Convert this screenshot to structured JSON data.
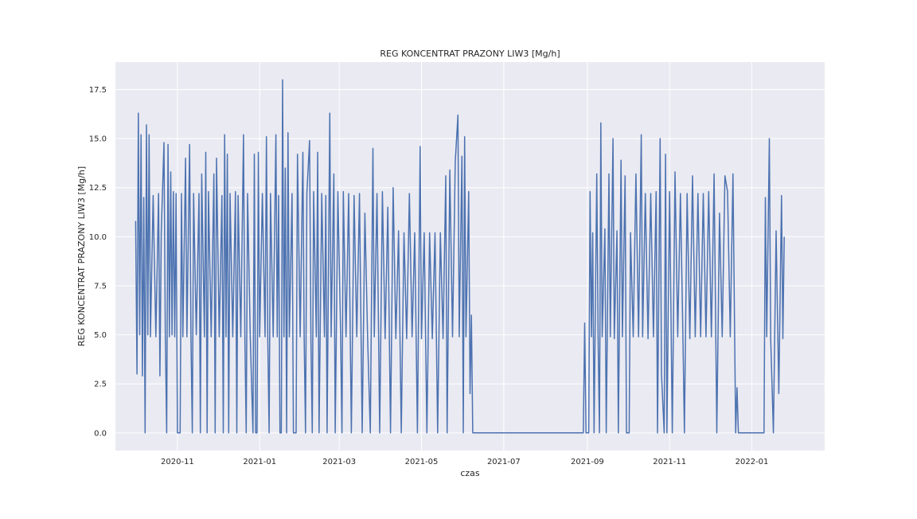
{
  "chart_data": {
    "type": "line",
    "title": "REG KONCENTRAT PRAZONY LIW3 [Mg/h]",
    "xlabel": "czas",
    "ylabel": "REG KONCENTRAT PRAZONY LIW3 [Mg/h]",
    "x_ticks": [
      "2020-11",
      "2021-01",
      "2021-03",
      "2021-05",
      "2021-07",
      "2021-09",
      "2021-11",
      "2022-01"
    ],
    "y_ticks": [
      "0.0",
      "2.5",
      "5.0",
      "7.5",
      "10.0",
      "12.5",
      "15.0",
      "17.5"
    ],
    "xlim": [
      "2020-09-16",
      "2022-02-24"
    ],
    "ylim": [
      -0.9,
      18.9
    ],
    "grid": true,
    "legend": "none",
    "series": [
      {
        "color": "#4c72b0",
        "points": [
          [
            "2020-10-01",
            10.8
          ],
          [
            "2020-10-02",
            3.0
          ],
          [
            "2020-10-03",
            16.3
          ],
          [
            "2020-10-04",
            5.0
          ],
          [
            "2020-10-05",
            15.2
          ],
          [
            "2020-10-06",
            2.9
          ],
          [
            "2020-10-07",
            12.0
          ],
          [
            "2020-10-08",
            0.0
          ],
          [
            "2020-10-09",
            15.7
          ],
          [
            "2020-10-10",
            5.0
          ],
          [
            "2020-10-11",
            15.2
          ],
          [
            "2020-10-12",
            4.9
          ],
          [
            "2020-10-14",
            12.1
          ],
          [
            "2020-10-16",
            4.9
          ],
          [
            "2020-10-18",
            12.2
          ],
          [
            "2020-10-19",
            2.9
          ],
          [
            "2020-10-20",
            10.2
          ],
          [
            "2020-10-22",
            14.8
          ],
          [
            "2020-10-23",
            4.9
          ],
          [
            "2020-10-24",
            0.0
          ],
          [
            "2020-10-25",
            14.7
          ],
          [
            "2020-10-26",
            4.9
          ],
          [
            "2020-10-27",
            13.3
          ],
          [
            "2020-10-28",
            5.0
          ],
          [
            "2020-10-29",
            12.3
          ],
          [
            "2020-10-30",
            4.9
          ],
          [
            "2020-10-31",
            12.2
          ],
          [
            "2020-11-01",
            0.0
          ],
          [
            "2020-11-03",
            0.0
          ],
          [
            "2020-11-04",
            12.2
          ],
          [
            "2020-11-05",
            4.9
          ],
          [
            "2020-11-07",
            14.0
          ],
          [
            "2020-11-08",
            4.9
          ],
          [
            "2020-11-10",
            14.7
          ],
          [
            "2020-11-11",
            4.9
          ],
          [
            "2020-11-12",
            0.0
          ],
          [
            "2020-11-13",
            12.2
          ],
          [
            "2020-11-15",
            5.0
          ],
          [
            "2020-11-17",
            12.2
          ],
          [
            "2020-11-18",
            0.0
          ],
          [
            "2020-11-19",
            13.2
          ],
          [
            "2020-11-21",
            4.9
          ],
          [
            "2020-11-22",
            14.3
          ],
          [
            "2020-11-23",
            0.0
          ],
          [
            "2020-11-24",
            12.3
          ],
          [
            "2020-11-26",
            4.9
          ],
          [
            "2020-11-28",
            13.2
          ],
          [
            "2020-11-29",
            0.0
          ],
          [
            "2020-11-30",
            14.0
          ],
          [
            "2020-12-02",
            4.9
          ],
          [
            "2020-12-04",
            12.1
          ],
          [
            "2020-12-05",
            0.0
          ],
          [
            "2020-12-06",
            15.2
          ],
          [
            "2020-12-07",
            4.9
          ],
          [
            "2020-12-08",
            14.2
          ],
          [
            "2020-12-09",
            0.0
          ],
          [
            "2020-12-10",
            12.2
          ],
          [
            "2020-12-12",
            4.9
          ],
          [
            "2020-12-14",
            12.3
          ],
          [
            "2020-12-15",
            0.0
          ],
          [
            "2020-12-16",
            12.1
          ],
          [
            "2020-12-18",
            4.9
          ],
          [
            "2020-12-20",
            15.2
          ],
          [
            "2020-12-21",
            4.9
          ],
          [
            "2020-12-22",
            0.0
          ],
          [
            "2020-12-23",
            12.2
          ],
          [
            "2020-12-25",
            4.9
          ],
          [
            "2020-12-27",
            0.0
          ],
          [
            "2020-12-28",
            14.2
          ],
          [
            "2020-12-29",
            0.0
          ],
          [
            "2020-12-30",
            0.0
          ],
          [
            "2020-12-31",
            14.3
          ],
          [
            "2021-01-01",
            4.9
          ],
          [
            "2021-01-03",
            12.2
          ],
          [
            "2021-01-05",
            4.9
          ],
          [
            "2021-01-06",
            15.1
          ],
          [
            "2021-01-07",
            4.8
          ],
          [
            "2021-01-08",
            0.0
          ],
          [
            "2021-01-09",
            12.2
          ],
          [
            "2021-01-11",
            4.9
          ],
          [
            "2021-01-13",
            15.2
          ],
          [
            "2021-01-14",
            4.9
          ],
          [
            "2021-01-15",
            12.1
          ],
          [
            "2021-01-16",
            0.0
          ],
          [
            "2021-01-17",
            0.0
          ],
          [
            "2021-01-18",
            18.0
          ],
          [
            "2021-01-19",
            4.9
          ],
          [
            "2021-01-20",
            13.5
          ],
          [
            "2021-01-21",
            0.0
          ],
          [
            "2021-01-22",
            15.3
          ],
          [
            "2021-01-23",
            4.9
          ],
          [
            "2021-01-25",
            12.2
          ],
          [
            "2021-01-26",
            0.0
          ],
          [
            "2021-01-28",
            0.0
          ],
          [
            "2021-01-29",
            14.2
          ],
          [
            "2021-01-31",
            4.9
          ],
          [
            "2021-02-02",
            14.3
          ],
          [
            "2021-02-03",
            4.9
          ],
          [
            "2021-02-04",
            0.0
          ],
          [
            "2021-02-05",
            12.2
          ],
          [
            "2021-02-07",
            14.9
          ],
          [
            "2021-02-08",
            4.8
          ],
          [
            "2021-02-09",
            0.0
          ],
          [
            "2021-02-10",
            12.3
          ],
          [
            "2021-02-12",
            4.9
          ],
          [
            "2021-02-13",
            14.3
          ],
          [
            "2021-02-14",
            0.0
          ],
          [
            "2021-02-16",
            12.2
          ],
          [
            "2021-02-18",
            4.9
          ],
          [
            "2021-02-19",
            12.1
          ],
          [
            "2021-02-20",
            0.0
          ],
          [
            "2021-02-22",
            16.3
          ],
          [
            "2021-02-23",
            4.9
          ],
          [
            "2021-02-25",
            13.2
          ],
          [
            "2021-02-26",
            0.0
          ],
          [
            "2021-02-28",
            12.3
          ],
          [
            "2021-03-02",
            4.9
          ],
          [
            "2021-03-03",
            0.0
          ],
          [
            "2021-03-04",
            12.3
          ],
          [
            "2021-03-06",
            4.9
          ],
          [
            "2021-03-08",
            12.2
          ],
          [
            "2021-03-10",
            0.0
          ],
          [
            "2021-03-12",
            12.1
          ],
          [
            "2021-03-14",
            4.9
          ],
          [
            "2021-03-16",
            12.2
          ],
          [
            "2021-03-18",
            0.0
          ],
          [
            "2021-03-20",
            11.2
          ],
          [
            "2021-03-22",
            4.9
          ],
          [
            "2021-03-24",
            0.0
          ],
          [
            "2021-03-26",
            14.5
          ],
          [
            "2021-03-27",
            4.9
          ],
          [
            "2021-03-29",
            12.2
          ],
          [
            "2021-03-31",
            0.0
          ],
          [
            "2021-04-02",
            12.3
          ],
          [
            "2021-04-04",
            4.8
          ],
          [
            "2021-04-06",
            11.5
          ],
          [
            "2021-04-08",
            0.0
          ],
          [
            "2021-04-10",
            12.5
          ],
          [
            "2021-04-12",
            4.8
          ],
          [
            "2021-04-14",
            10.3
          ],
          [
            "2021-04-16",
            0.0
          ],
          [
            "2021-04-18",
            10.2
          ],
          [
            "2021-04-20",
            4.8
          ],
          [
            "2021-04-22",
            12.2
          ],
          [
            "2021-04-24",
            4.9
          ],
          [
            "2021-04-26",
            10.2
          ],
          [
            "2021-04-28",
            0.0
          ],
          [
            "2021-04-30",
            14.6
          ],
          [
            "2021-05-01",
            4.8
          ],
          [
            "2021-05-03",
            10.2
          ],
          [
            "2021-05-05",
            0.0
          ],
          [
            "2021-05-07",
            10.2
          ],
          [
            "2021-05-09",
            4.8
          ],
          [
            "2021-05-11",
            10.2
          ],
          [
            "2021-05-13",
            0.0
          ],
          [
            "2021-05-15",
            10.2
          ],
          [
            "2021-05-17",
            4.8
          ],
          [
            "2021-05-19",
            13.1
          ],
          [
            "2021-05-20",
            0.0
          ],
          [
            "2021-05-22",
            13.4
          ],
          [
            "2021-05-24",
            4.9
          ],
          [
            "2021-05-26",
            13.8
          ],
          [
            "2021-05-28",
            16.2
          ],
          [
            "2021-05-29",
            4.9
          ],
          [
            "2021-05-31",
            14.1
          ],
          [
            "2021-06-01",
            0.0
          ],
          [
            "2021-06-02",
            15.1
          ],
          [
            "2021-06-03",
            4.9
          ],
          [
            "2021-06-05",
            12.3
          ],
          [
            "2021-06-06",
            2.0
          ],
          [
            "2021-06-07",
            6.0
          ],
          [
            "2021-06-08",
            0.0
          ],
          [
            "2021-06-10",
            0.0
          ],
          [
            "2021-07-01",
            0.0
          ],
          [
            "2021-08-01",
            0.0
          ],
          [
            "2021-08-29",
            0.0
          ],
          [
            "2021-08-30",
            5.6
          ],
          [
            "2021-08-31",
            0.0
          ],
          [
            "2021-09-02",
            0.0
          ],
          [
            "2021-09-03",
            12.3
          ],
          [
            "2021-09-04",
            4.9
          ],
          [
            "2021-09-05",
            10.2
          ],
          [
            "2021-09-06",
            0.0
          ],
          [
            "2021-09-08",
            13.2
          ],
          [
            "2021-09-09",
            4.8
          ],
          [
            "2021-09-10",
            0.0
          ],
          [
            "2021-09-11",
            15.8
          ],
          [
            "2021-09-12",
            4.9
          ],
          [
            "2021-09-14",
            10.4
          ],
          [
            "2021-09-15",
            0.0
          ],
          [
            "2021-09-17",
            13.2
          ],
          [
            "2021-09-18",
            4.9
          ],
          [
            "2021-09-20",
            15.0
          ],
          [
            "2021-09-21",
            4.8
          ],
          [
            "2021-09-23",
            10.3
          ],
          [
            "2021-09-24",
            0.0
          ],
          [
            "2021-09-26",
            13.9
          ],
          [
            "2021-09-27",
            4.9
          ],
          [
            "2021-09-29",
            13.1
          ],
          [
            "2021-09-30",
            0.0
          ],
          [
            "2021-10-02",
            0.0
          ],
          [
            "2021-10-03",
            10.2
          ],
          [
            "2021-10-05",
            4.9
          ],
          [
            "2021-10-07",
            13.2
          ],
          [
            "2021-10-09",
            4.9
          ],
          [
            "2021-10-11",
            15.2
          ],
          [
            "2021-10-12",
            4.9
          ],
          [
            "2021-10-14",
            12.2
          ],
          [
            "2021-10-16",
            4.8
          ],
          [
            "2021-10-18",
            12.2
          ],
          [
            "2021-10-20",
            4.9
          ],
          [
            "2021-10-22",
            12.3
          ],
          [
            "2021-10-23",
            0.0
          ],
          [
            "2021-10-25",
            15.0
          ],
          [
            "2021-10-26",
            3.0
          ],
          [
            "2021-10-28",
            0.0
          ],
          [
            "2021-10-29",
            14.2
          ],
          [
            "2021-10-30",
            0.0
          ],
          [
            "2021-11-01",
            12.3
          ],
          [
            "2021-11-03",
            0.0
          ],
          [
            "2021-11-05",
            13.3
          ],
          [
            "2021-11-07",
            4.9
          ],
          [
            "2021-11-09",
            12.2
          ],
          [
            "2021-11-11",
            4.5
          ],
          [
            "2021-11-12",
            0.0
          ],
          [
            "2021-11-14",
            12.2
          ],
          [
            "2021-11-16",
            4.8
          ],
          [
            "2021-11-18",
            13.1
          ],
          [
            "2021-11-20",
            4.9
          ],
          [
            "2021-11-22",
            12.2
          ],
          [
            "2021-11-24",
            4.9
          ],
          [
            "2021-11-26",
            12.2
          ],
          [
            "2021-11-28",
            4.9
          ],
          [
            "2021-11-30",
            12.3
          ],
          [
            "2021-12-02",
            4.9
          ],
          [
            "2021-12-04",
            13.2
          ],
          [
            "2021-12-06",
            0.0
          ],
          [
            "2021-12-08",
            11.2
          ],
          [
            "2021-12-10",
            4.9
          ],
          [
            "2021-12-12",
            13.1
          ],
          [
            "2021-12-14",
            12.3
          ],
          [
            "2021-12-16",
            4.9
          ],
          [
            "2021-12-18",
            13.2
          ],
          [
            "2021-12-20",
            0.0
          ],
          [
            "2021-12-21",
            2.3
          ],
          [
            "2021-12-22",
            0.0
          ],
          [
            "2022-01-10",
            0.0
          ],
          [
            "2022-01-11",
            12.0
          ],
          [
            "2022-01-12",
            4.9
          ],
          [
            "2022-01-14",
            15.0
          ],
          [
            "2022-01-15",
            4.8
          ],
          [
            "2022-01-17",
            0.0
          ],
          [
            "2022-01-19",
            10.3
          ],
          [
            "2022-01-21",
            2.0
          ],
          [
            "2022-01-23",
            12.1
          ],
          [
            "2022-01-24",
            4.8
          ],
          [
            "2022-01-25",
            10.0
          ]
        ]
      }
    ]
  }
}
